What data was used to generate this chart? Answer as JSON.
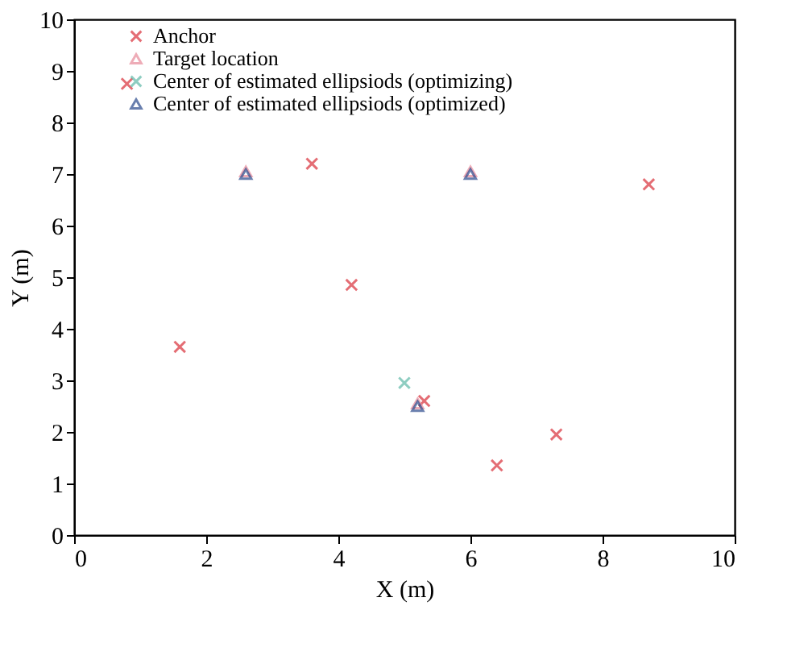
{
  "chart_data": {
    "type": "scatter",
    "xlabel": "X (m)",
    "ylabel": "Y (m)",
    "xlim": [
      0,
      10
    ],
    "ylim": [
      0,
      10
    ],
    "xticks": [
      0,
      2,
      4,
      6,
      8,
      10
    ],
    "yticks": [
      0,
      1,
      2,
      3,
      4,
      5,
      6,
      7,
      8,
      9,
      10
    ],
    "grid": false,
    "legend": "top left",
    "series": [
      {
        "name": "Anchor",
        "marker": "cross",
        "color": "#d9303a",
        "x": [
          0.8,
          3.6,
          4.2,
          1.6,
          5.3,
          6.4,
          7.3,
          8.7
        ],
        "values": [
          8.75,
          7.2,
          4.85,
          3.65,
          2.6,
          1.35,
          1.95,
          6.8
        ]
      },
      {
        "name": "Target location",
        "marker": "triangle",
        "color": "#e88a9a",
        "x": [
          2.6,
          6.0,
          5.2
        ],
        "values": [
          7.05,
          7.05,
          2.55
        ]
      },
      {
        "name": "Center of estimated ellipsiods (optimizing)",
        "marker": "cross",
        "color": "#5fb8a8",
        "x": [
          5.0
        ],
        "values": [
          2.95
        ]
      },
      {
        "name": "Center of estimated ellipsiods (optimized)",
        "marker": "triangle",
        "color": "#2b4a8c",
        "x": [
          2.6,
          6.0,
          5.2
        ],
        "values": [
          7.0,
          7.0,
          2.5
        ]
      }
    ]
  }
}
